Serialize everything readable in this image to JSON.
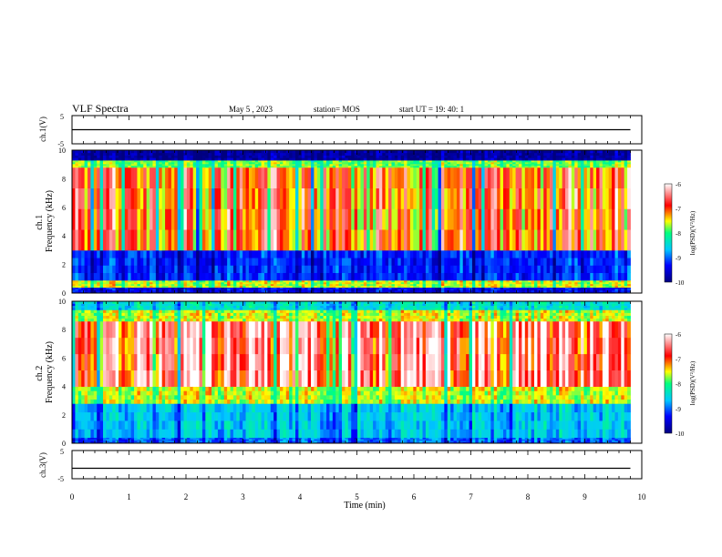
{
  "header": {
    "title": "VLF Spectra",
    "date": "May 5 , 2023",
    "station": "station= MOS",
    "start": "start  UT =   19: 40: 1"
  },
  "colorbar": {
    "label": "log(PSD)(V²/Hz)",
    "ticks": [
      "-6",
      "-7",
      "-8",
      "-9",
      "-10"
    ]
  },
  "chart_data": [
    {
      "type": "line",
      "ylabel": "ch.1(V)",
      "ylim": [
        -5,
        5
      ],
      "yticks": [
        "5",
        "-5"
      ],
      "series": [
        {
          "x": [
            0,
            9.8
          ],
          "values": [
            0,
            0
          ]
        }
      ]
    },
    {
      "type": "heatmap",
      "ylabel": "ch.1\nFrequency (kHz)",
      "xlim": [
        0,
        10
      ],
      "ylim": [
        0,
        10
      ],
      "yticks": [
        "0",
        "2",
        "4",
        "6",
        "8",
        "10"
      ],
      "data_extent_min": 9.8,
      "colorscale": {
        "min": -10,
        "max": -6,
        "colors": [
          "#000080",
          "#0000ff",
          "#00c8ff",
          "#00ff80",
          "#ffff00",
          "#ff0000",
          "#ffffff"
        ]
      },
      "bands": [
        {
          "f": [
            0,
            0.4
          ],
          "level": -9.4
        },
        {
          "f": [
            0.4,
            0.9
          ],
          "level": -7.6
        },
        {
          "f": [
            0.9,
            3.0
          ],
          "level": -9.2
        },
        {
          "f": [
            3.0,
            8.8
          ],
          "level": -7.0
        },
        {
          "f": [
            8.8,
            9.3
          ],
          "level": -7.8
        },
        {
          "f": [
            9.3,
            10
          ],
          "level": -9.8
        }
      ]
    },
    {
      "type": "heatmap",
      "ylabel": "ch.2\nFrequency (kHz)",
      "xlim": [
        0,
        10
      ],
      "ylim": [
        0,
        10
      ],
      "yticks": [
        "0",
        "2",
        "4",
        "6",
        "8",
        "10"
      ],
      "data_extent_min": 9.8,
      "colorscale": {
        "min": -10,
        "max": -6,
        "colors": [
          "#000080",
          "#0000ff",
          "#00c8ff",
          "#00ff80",
          "#ffff00",
          "#ff0000",
          "#ffffff"
        ]
      },
      "bands": [
        {
          "f": [
            0,
            0.4
          ],
          "level": -9.0
        },
        {
          "f": [
            0.4,
            2.8
          ],
          "level": -8.6
        },
        {
          "f": [
            2.8,
            4.0
          ],
          "level": -7.6
        },
        {
          "f": [
            4.0,
            8.6
          ],
          "level": -6.5
        },
        {
          "f": [
            8.6,
            9.4
          ],
          "level": -7.6
        },
        {
          "f": [
            9.4,
            10
          ],
          "level": -8.4
        }
      ]
    },
    {
      "type": "line",
      "ylabel": "ch.3(V)",
      "xlabel": "Time (min)",
      "xlim": [
        0,
        10
      ],
      "xticks": [
        "0",
        "1",
        "2",
        "3",
        "4",
        "5",
        "6",
        "7",
        "8",
        "9",
        "10"
      ],
      "ylim": [
        -5,
        5
      ],
      "yticks": [
        "5",
        "-5"
      ],
      "series": [
        {
          "x": [
            0,
            9.8
          ],
          "values": [
            -1.3,
            -1.3
          ]
        }
      ]
    }
  ]
}
